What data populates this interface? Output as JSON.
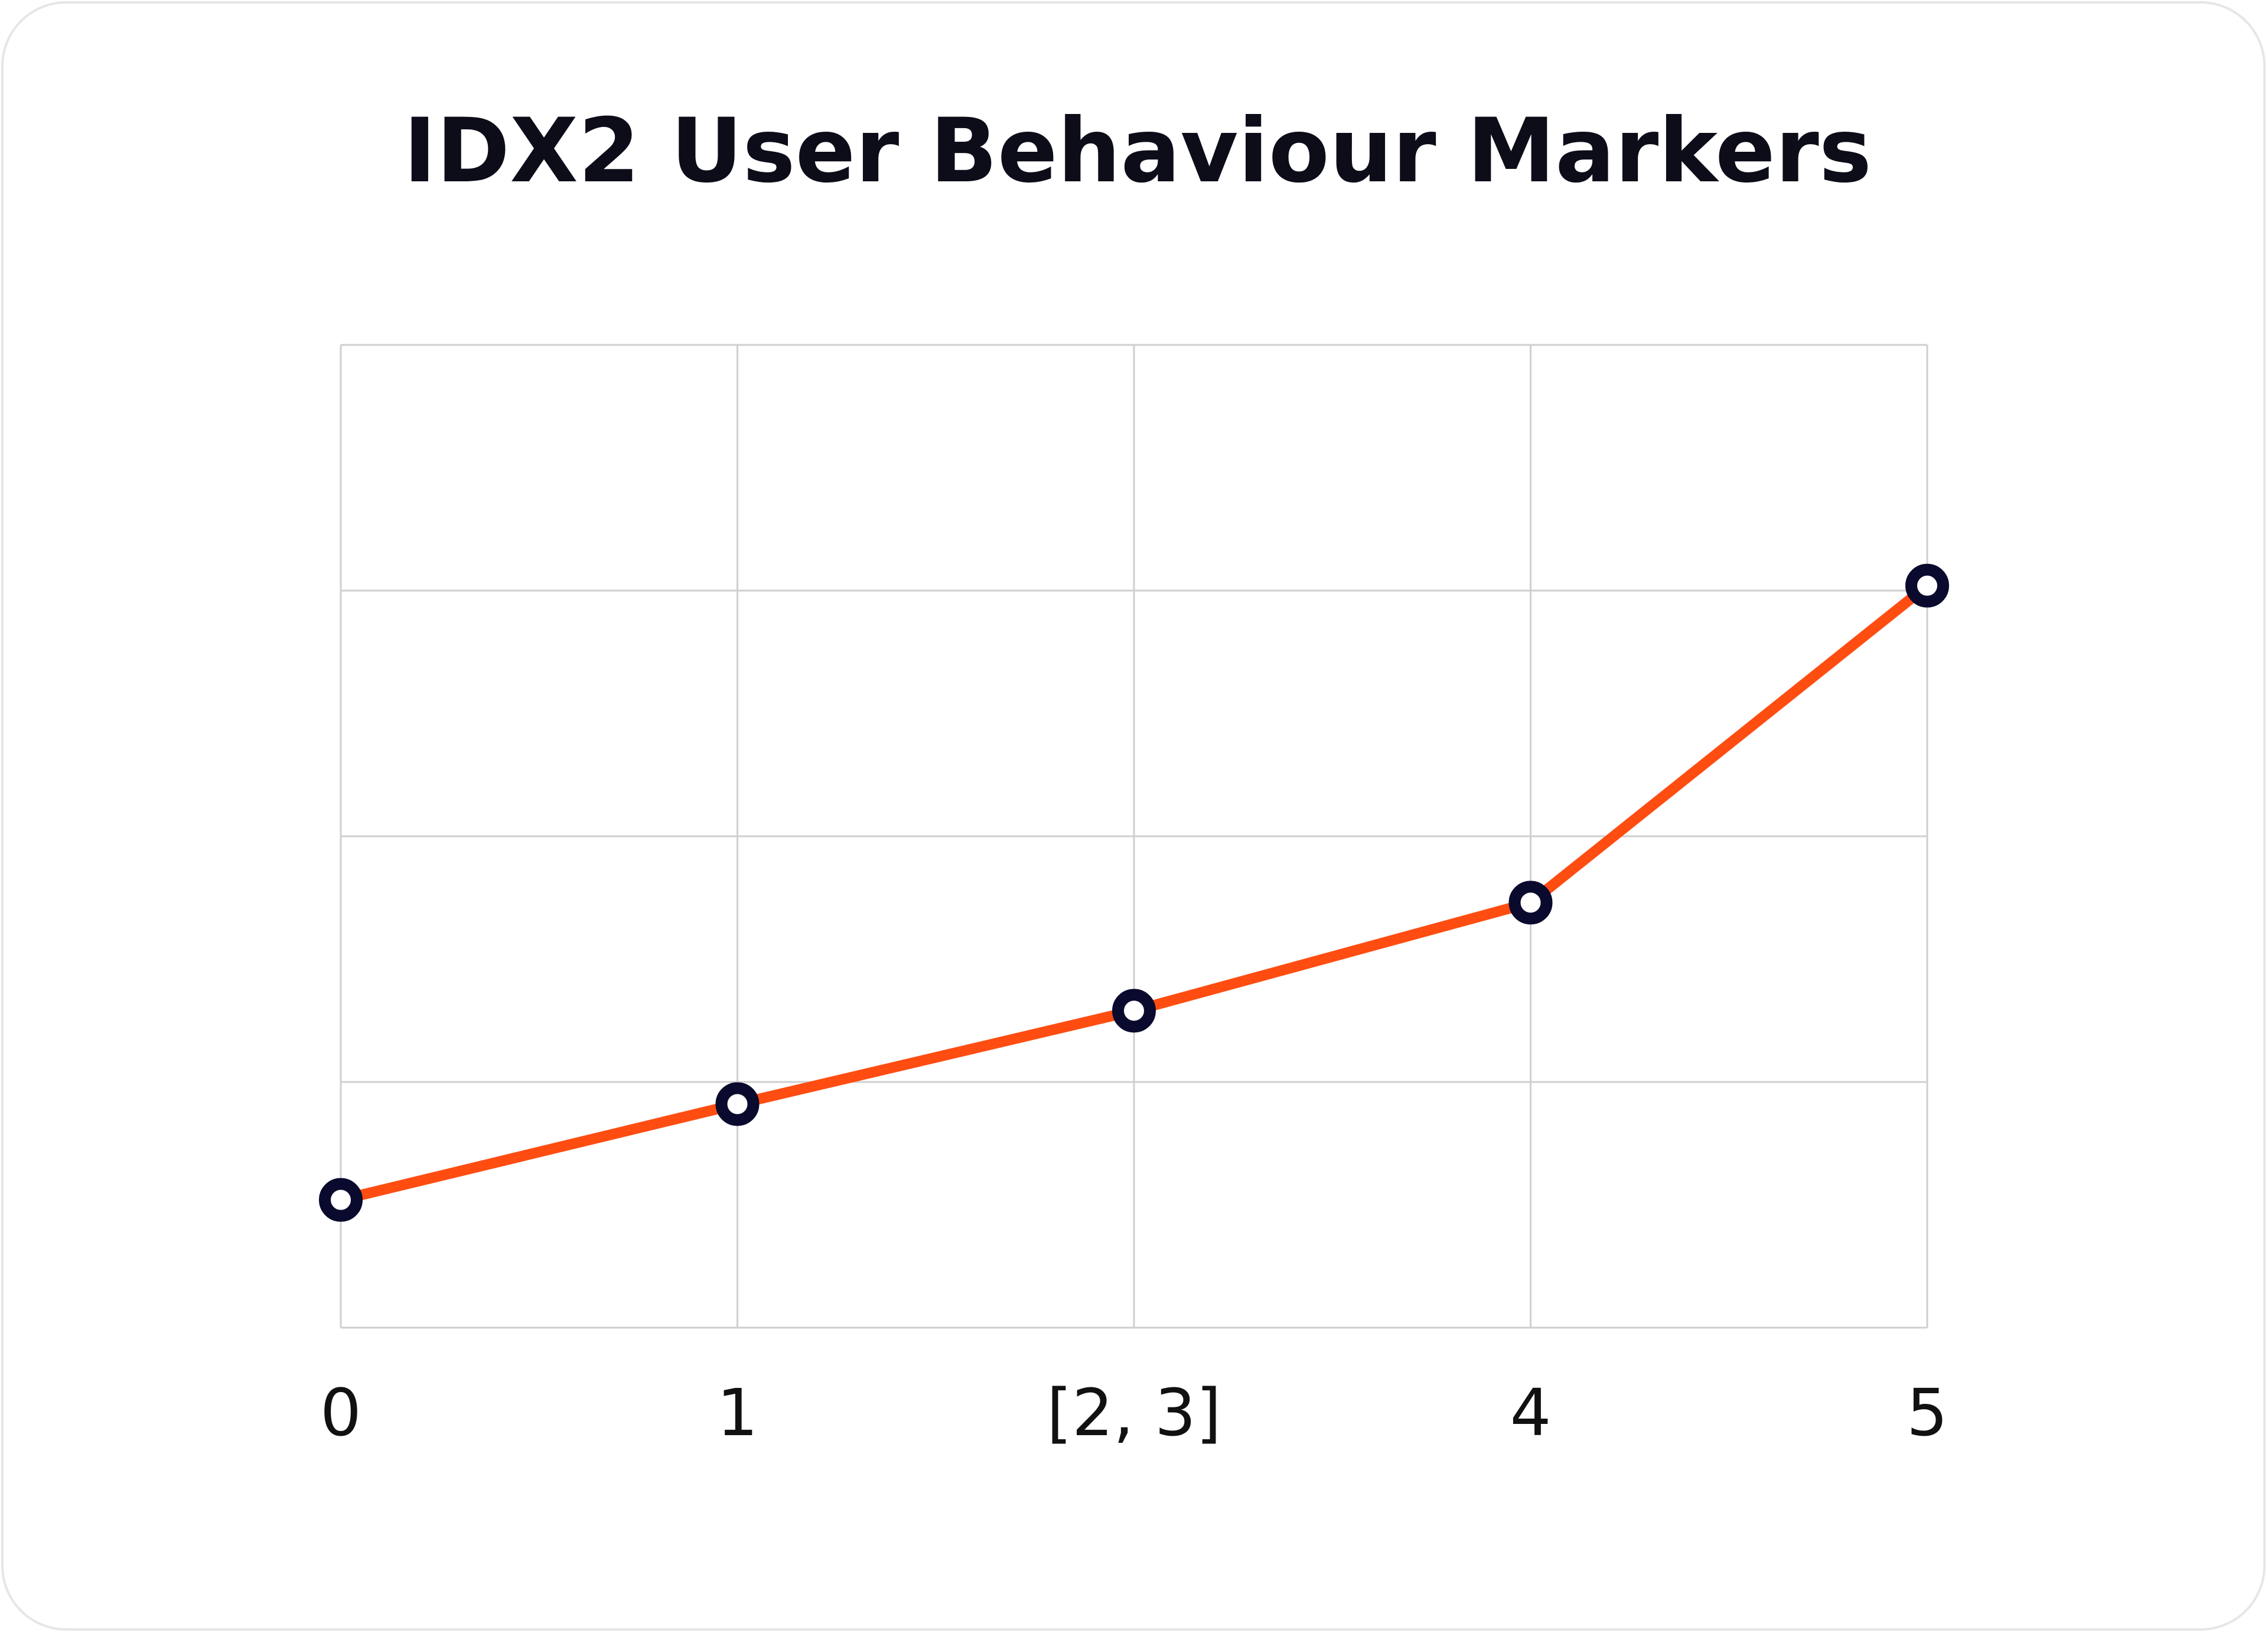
{
  "chart_data": {
    "type": "line",
    "title": "IDX2 User Behaviour Markers",
    "xlabel": "",
    "ylabel": "",
    "categories": [
      "0",
      "1",
      "[2, 3]",
      "4",
      "5"
    ],
    "series": [
      {
        "values": [
          0.26,
          0.455,
          0.645,
          0.865,
          1.51
        ]
      }
    ],
    "ylim": [
      0,
      2
    ],
    "grid": true,
    "legend": "none",
    "colors": {
      "line": "#ff4d12",
      "marker_stroke": "#0a0a2e",
      "marker_fill": "#ffffff",
      "grid": "#cfcfcf"
    }
  }
}
